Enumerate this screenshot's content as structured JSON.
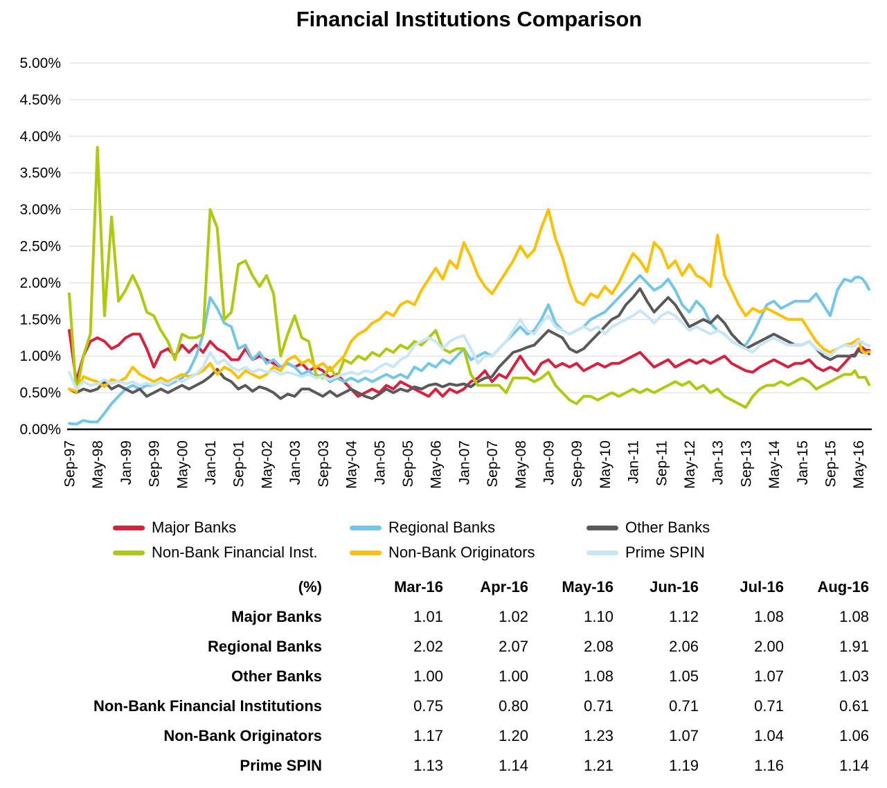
{
  "title": "Financial Institutions Comparison",
  "colors": {
    "major_banks": "#D9213F",
    "regional_banks": "#74C6E8",
    "other_banks": "#595959",
    "non_bank_financial_inst": "#AFC90F",
    "non_bank_originators": "#FFC000",
    "prime_spin": "#C9E6F6",
    "gridline": "#D9D9D9",
    "axis": "#000000"
  },
  "chart_data": {
    "type": "line",
    "title": "Financial Institutions Comparison",
    "ylim": [
      0,
      5
    ],
    "y_axis": {
      "format": "percent",
      "step": 0.5,
      "tick_labels": [
        "5.00%",
        "4.50%",
        "4.00%",
        "3.50%",
        "3.00%",
        "2.50%",
        "2.00%",
        "1.50%",
        "1.00%",
        "0.50%",
        "0.00%"
      ]
    },
    "x_axis": {
      "start": "Sep-97",
      "end": "Aug-16",
      "tick_interval_months": 8,
      "tick_labels": [
        "Sep-97",
        "May-98",
        "Jan-99",
        "Sep-99",
        "May-00",
        "Jan-01",
        "Sep-01",
        "May-02",
        "Jan-03",
        "Sep-03",
        "May-04",
        "Jan-05",
        "Sep-05",
        "May-06",
        "Jan-07",
        "Sep-07",
        "May-08",
        "Jan-09",
        "Sep-09",
        "May-10",
        "Jan-11",
        "Sep-11",
        "May-12",
        "Jan-13",
        "Sep-13",
        "May-14",
        "Jan-15",
        "Sep-15",
        "May-16"
      ]
    },
    "grid": "horizontal",
    "legend_position": "bottom",
    "x_months": [
      0,
      2,
      4,
      6,
      8,
      10,
      12,
      14,
      16,
      18,
      20,
      22,
      24,
      26,
      28,
      30,
      32,
      34,
      36,
      38,
      40,
      42,
      44,
      46,
      48,
      50,
      52,
      54,
      56,
      58,
      60,
      62,
      64,
      66,
      68,
      70,
      72,
      74,
      76,
      78,
      80,
      82,
      84,
      86,
      88,
      90,
      92,
      94,
      96,
      98,
      100,
      102,
      104,
      106,
      108,
      110,
      112,
      114,
      116,
      118,
      120,
      122,
      124,
      126,
      128,
      130,
      132,
      134,
      136,
      138,
      140,
      142,
      144,
      146,
      148,
      150,
      152,
      154,
      156,
      158,
      160,
      162,
      164,
      166,
      168,
      170,
      172,
      174,
      176,
      178,
      180,
      182,
      184,
      186,
      188,
      190,
      192,
      194,
      196,
      198,
      200,
      202,
      204,
      206,
      208,
      210,
      212,
      214,
      216,
      218,
      220,
      222,
      223,
      224,
      225,
      226,
      227
    ],
    "series": [
      {
        "name": "Major Banks",
        "color": "#D9213F",
        "values": [
          1.35,
          0.65,
          1.0,
          1.2,
          1.25,
          1.2,
          1.1,
          1.15,
          1.25,
          1.3,
          1.3,
          1.1,
          0.85,
          1.05,
          1.1,
          1.0,
          1.15,
          1.05,
          1.15,
          1.05,
          1.2,
          1.1,
          1.05,
          0.95,
          0.95,
          1.1,
          0.95,
          1.0,
          0.95,
          0.9,
          0.85,
          0.9,
          0.85,
          0.9,
          0.8,
          0.85,
          0.8,
          0.7,
          0.75,
          0.65,
          0.55,
          0.45,
          0.5,
          0.55,
          0.5,
          0.6,
          0.55,
          0.65,
          0.6,
          0.55,
          0.5,
          0.45,
          0.55,
          0.45,
          0.55,
          0.5,
          0.55,
          0.65,
          0.7,
          0.8,
          0.65,
          0.75,
          0.7,
          0.85,
          1.0,
          0.85,
          0.75,
          0.9,
          0.95,
          0.85,
          0.9,
          0.85,
          0.9,
          0.8,
          0.85,
          0.9,
          0.85,
          0.9,
          0.9,
          0.95,
          1.0,
          1.05,
          0.95,
          0.85,
          0.9,
          0.95,
          0.85,
          0.9,
          0.95,
          0.9,
          0.95,
          0.9,
          0.95,
          1.0,
          0.9,
          0.85,
          0.8,
          0.78,
          0.85,
          0.9,
          0.95,
          0.9,
          0.85,
          0.9,
          0.9,
          0.95,
          0.85,
          0.8,
          0.85,
          0.8,
          0.9,
          1.01,
          1.02,
          1.1,
          1.12,
          1.08,
          1.08
        ]
      },
      {
        "name": "Regional Banks",
        "color": "#74C6E8",
        "values": [
          0.08,
          0.07,
          0.12,
          0.1,
          0.1,
          0.22,
          0.35,
          0.45,
          0.55,
          0.6,
          0.55,
          0.6,
          0.6,
          0.65,
          0.6,
          0.65,
          0.7,
          0.8,
          1.0,
          1.3,
          1.8,
          1.65,
          1.45,
          1.4,
          1.1,
          1.15,
          0.95,
          1.05,
          0.9,
          0.95,
          0.85,
          0.9,
          0.85,
          0.75,
          0.8,
          0.7,
          0.75,
          0.65,
          0.7,
          0.65,
          0.7,
          0.65,
          0.7,
          0.65,
          0.7,
          0.75,
          0.7,
          0.75,
          0.7,
          0.85,
          0.8,
          0.9,
          0.85,
          0.95,
          0.9,
          1.0,
          1.1,
          0.95,
          1.0,
          1.05,
          1.0,
          1.1,
          1.2,
          1.3,
          1.4,
          1.3,
          1.35,
          1.5,
          1.7,
          1.45,
          1.35,
          1.3,
          1.35,
          1.4,
          1.5,
          1.55,
          1.6,
          1.7,
          1.8,
          1.9,
          2.0,
          2.1,
          2.0,
          1.9,
          1.95,
          2.05,
          1.9,
          1.7,
          1.6,
          1.75,
          1.65,
          1.45,
          1.35,
          1.3,
          1.2,
          1.15,
          1.15,
          1.3,
          1.5,
          1.7,
          1.75,
          1.65,
          1.7,
          1.75,
          1.75,
          1.75,
          1.85,
          1.7,
          1.55,
          1.9,
          2.05,
          2.02,
          2.07,
          2.08,
          2.06,
          2.0,
          1.91
        ]
      },
      {
        "name": "Other Banks",
        "color": "#595959",
        "values": [
          0.55,
          0.5,
          0.55,
          0.52,
          0.55,
          0.65,
          0.55,
          0.6,
          0.55,
          0.5,
          0.55,
          0.45,
          0.5,
          0.55,
          0.5,
          0.55,
          0.6,
          0.55,
          0.6,
          0.65,
          0.72,
          0.82,
          0.7,
          0.65,
          0.55,
          0.6,
          0.52,
          0.58,
          0.55,
          0.5,
          0.42,
          0.48,
          0.45,
          0.55,
          0.55,
          0.5,
          0.45,
          0.52,
          0.45,
          0.5,
          0.55,
          0.5,
          0.45,
          0.42,
          0.48,
          0.55,
          0.5,
          0.55,
          0.52,
          0.58,
          0.55,
          0.6,
          0.62,
          0.58,
          0.62,
          0.6,
          0.62,
          0.58,
          0.65,
          0.7,
          0.72,
          0.85,
          0.95,
          1.05,
          1.08,
          1.12,
          1.15,
          1.25,
          1.35,
          1.3,
          1.25,
          1.1,
          1.05,
          1.1,
          1.2,
          1.3,
          1.4,
          1.5,
          1.55,
          1.7,
          1.8,
          1.92,
          1.75,
          1.6,
          1.7,
          1.8,
          1.7,
          1.55,
          1.4,
          1.45,
          1.5,
          1.45,
          1.55,
          1.45,
          1.3,
          1.2,
          1.1,
          1.15,
          1.2,
          1.25,
          1.3,
          1.25,
          1.2,
          1.15,
          1.15,
          1.2,
          1.1,
          1.0,
          0.95,
          1.0,
          1.0,
          1.0,
          1.0,
          1.08,
          1.05,
          1.07,
          1.03
        ]
      },
      {
        "name": "Non-Bank Financial Inst.",
        "color": "#AFC90F",
        "values": [
          1.85,
          0.5,
          1.0,
          1.3,
          3.85,
          1.55,
          2.9,
          1.75,
          1.9,
          2.1,
          1.9,
          1.6,
          1.55,
          1.35,
          1.2,
          0.95,
          1.3,
          1.25,
          1.25,
          1.3,
          3.0,
          2.75,
          1.5,
          1.6,
          2.25,
          2.3,
          2.1,
          1.95,
          2.1,
          1.85,
          1.0,
          1.3,
          1.55,
          1.25,
          1.2,
          0.75,
          0.7,
          0.85,
          0.7,
          0.95,
          0.9,
          1.0,
          0.95,
          1.05,
          1.0,
          1.1,
          1.05,
          1.15,
          1.1,
          1.2,
          1.15,
          1.25,
          1.35,
          1.1,
          1.05,
          1.1,
          1.1,
          0.75,
          0.6,
          0.6,
          0.6,
          0.6,
          0.5,
          0.7,
          0.7,
          0.7,
          0.65,
          0.7,
          0.78,
          0.6,
          0.5,
          0.4,
          0.35,
          0.45,
          0.45,
          0.4,
          0.45,
          0.5,
          0.45,
          0.5,
          0.55,
          0.5,
          0.55,
          0.5,
          0.55,
          0.6,
          0.65,
          0.6,
          0.65,
          0.55,
          0.6,
          0.5,
          0.55,
          0.45,
          0.4,
          0.35,
          0.3,
          0.45,
          0.55,
          0.6,
          0.6,
          0.65,
          0.6,
          0.65,
          0.7,
          0.65,
          0.55,
          0.6,
          0.65,
          0.7,
          0.75,
          0.75,
          0.8,
          0.71,
          0.71,
          0.71,
          0.61
        ]
      },
      {
        "name": "Non-Bank Originators",
        "color": "#FFC000",
        "values": [
          0.55,
          0.52,
          0.72,
          0.68,
          0.65,
          0.58,
          0.68,
          0.65,
          0.7,
          0.85,
          0.75,
          0.7,
          0.65,
          0.7,
          0.65,
          0.7,
          0.75,
          0.72,
          0.75,
          0.8,
          0.9,
          0.75,
          0.85,
          0.8,
          0.7,
          0.8,
          0.75,
          0.7,
          0.75,
          0.85,
          0.8,
          0.95,
          1.0,
          0.9,
          0.95,
          0.85,
          0.9,
          0.8,
          0.9,
          1.0,
          1.2,
          1.3,
          1.35,
          1.45,
          1.5,
          1.6,
          1.55,
          1.7,
          1.75,
          1.7,
          1.9,
          2.05,
          2.2,
          2.05,
          2.3,
          2.2,
          2.55,
          2.35,
          2.1,
          1.95,
          1.85,
          2.0,
          2.15,
          2.3,
          2.5,
          2.35,
          2.45,
          2.75,
          3.0,
          2.6,
          2.35,
          2.0,
          1.75,
          1.7,
          1.85,
          1.8,
          1.95,
          1.85,
          2.0,
          2.2,
          2.4,
          2.3,
          2.15,
          2.55,
          2.45,
          2.2,
          2.3,
          2.1,
          2.25,
          2.1,
          2.05,
          1.95,
          2.65,
          2.1,
          1.9,
          1.7,
          1.55,
          1.65,
          1.6,
          1.65,
          1.6,
          1.55,
          1.5,
          1.5,
          1.5,
          1.35,
          1.2,
          1.1,
          1.05,
          1.1,
          1.15,
          1.17,
          1.2,
          1.23,
          1.07,
          1.04,
          1.06
        ]
      },
      {
        "name": "Prime SPIN",
        "color": "#C9E6F6",
        "values": [
          0.78,
          0.55,
          0.65,
          0.6,
          0.62,
          0.68,
          0.62,
          0.66,
          0.62,
          0.65,
          0.6,
          0.63,
          0.6,
          0.65,
          0.62,
          0.68,
          0.65,
          0.7,
          0.75,
          0.85,
          1.05,
          0.9,
          0.95,
          0.85,
          0.8,
          0.85,
          0.78,
          0.82,
          0.78,
          0.8,
          0.75,
          0.78,
          0.75,
          0.72,
          0.75,
          0.7,
          0.72,
          0.68,
          0.72,
          0.75,
          0.78,
          0.75,
          0.8,
          0.78,
          0.85,
          0.9,
          0.85,
          0.95,
          1.0,
          1.15,
          1.2,
          1.25,
          1.2,
          1.1,
          1.2,
          1.25,
          1.28,
          1.1,
          0.9,
          1.0,
          1.0,
          1.1,
          1.2,
          1.35,
          1.5,
          1.35,
          1.3,
          1.45,
          1.55,
          1.4,
          1.35,
          1.3,
          1.35,
          1.4,
          1.35,
          1.4,
          1.3,
          1.4,
          1.45,
          1.5,
          1.55,
          1.62,
          1.55,
          1.45,
          1.55,
          1.6,
          1.55,
          1.45,
          1.35,
          1.4,
          1.35,
          1.3,
          1.35,
          1.3,
          1.2,
          1.15,
          1.1,
          1.05,
          1.15,
          1.2,
          1.25,
          1.2,
          1.15,
          1.15,
          1.15,
          1.2,
          1.1,
          1.05,
          1.0,
          1.1,
          1.15,
          1.13,
          1.14,
          1.21,
          1.19,
          1.16,
          1.14
        ]
      }
    ]
  },
  "legend": {
    "items": [
      {
        "label": "Major Banks",
        "color": "#D9213F"
      },
      {
        "label": "Regional Banks",
        "color": "#74C6E8"
      },
      {
        "label": "Other Banks",
        "color": "#595959"
      },
      {
        "label": "Non-Bank Financial Inst.",
        "color": "#AFC90F"
      },
      {
        "label": "Non-Bank Originators",
        "color": "#FFC000"
      },
      {
        "label": "Prime SPIN",
        "color": "#C9E6F6"
      }
    ]
  },
  "table": {
    "header": [
      "(%)",
      "Mar-16",
      "Apr-16",
      "May-16",
      "Jun-16",
      "Jul-16",
      "Aug-16"
    ],
    "rows": [
      {
        "label": "Major Banks",
        "values": [
          "1.01",
          "1.02",
          "1.10",
          "1.12",
          "1.08",
          "1.08"
        ]
      },
      {
        "label": "Regional Banks",
        "values": [
          "2.02",
          "2.07",
          "2.08",
          "2.06",
          "2.00",
          "1.91"
        ]
      },
      {
        "label": "Other Banks",
        "values": [
          "1.00",
          "1.00",
          "1.08",
          "1.05",
          "1.07",
          "1.03"
        ]
      },
      {
        "label": "Non-Bank Financial Institutions",
        "values": [
          "0.75",
          "0.80",
          "0.71",
          "0.71",
          "0.71",
          "0.61"
        ]
      },
      {
        "label": "Non-Bank Originators",
        "values": [
          "1.17",
          "1.20",
          "1.23",
          "1.07",
          "1.04",
          "1.06"
        ]
      },
      {
        "label": "Prime SPIN",
        "values": [
          "1.13",
          "1.14",
          "1.21",
          "1.19",
          "1.16",
          "1.14"
        ]
      }
    ]
  }
}
